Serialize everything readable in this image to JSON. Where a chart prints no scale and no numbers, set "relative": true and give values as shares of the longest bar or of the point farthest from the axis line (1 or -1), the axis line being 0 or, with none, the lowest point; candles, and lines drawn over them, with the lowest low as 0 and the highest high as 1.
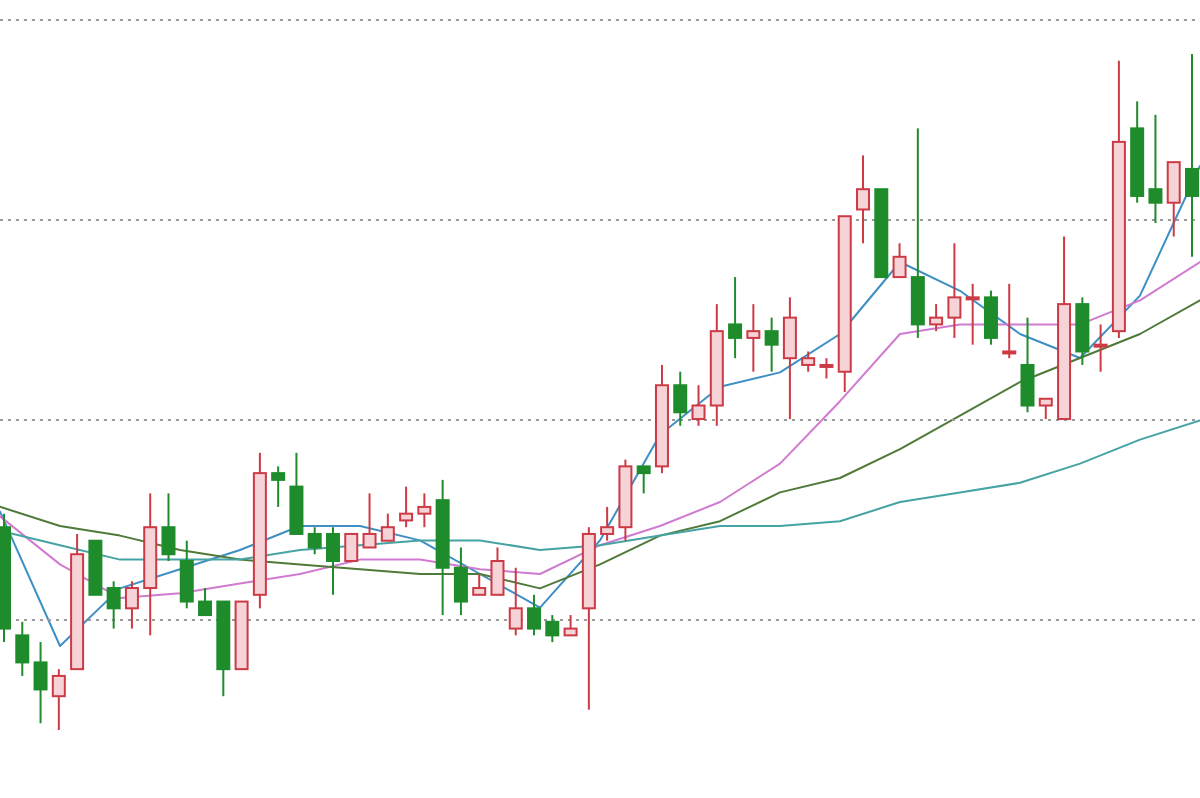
{
  "chart_data": [
    {
      "type": "candlestick",
      "relative": true,
      "grid": "y",
      "categories": [
        null,
        null,
        null,
        null,
        null,
        null,
        null,
        null,
        null,
        null,
        null,
        null,
        null,
        null,
        null,
        null,
        null,
        null,
        null,
        null,
        null,
        null,
        null,
        null,
        null,
        null,
        null,
        null,
        null,
        null,
        null,
        null,
        null,
        null,
        null,
        null,
        null,
        null,
        null,
        null,
        null,
        null,
        null,
        null,
        null,
        null,
        null,
        null,
        null,
        null,
        null,
        null,
        null,
        null,
        null,
        null,
        null,
        null,
        null,
        null,
        null,
        null,
        null,
        null,
        null,
        null
      ],
      "ohlc": [
        [
          0.3,
          0.32,
          0.13,
          0.15
        ],
        [
          0.14,
          0.16,
          0.08,
          0.1
        ],
        [
          0.1,
          0.13,
          0.01,
          0.06
        ],
        [
          0.05,
          0.09,
          0,
          0.08
        ],
        [
          0.09,
          0.29,
          0.09,
          0.26
        ],
        [
          0.28,
          0.28,
          0.2,
          0.2
        ],
        [
          0.21,
          0.22,
          0.15,
          0.18
        ],
        [
          0.18,
          0.22,
          0.15,
          0.21
        ],
        [
          0.21,
          0.35,
          0.14,
          0.3
        ],
        [
          0.3,
          0.35,
          0.25,
          0.26
        ],
        [
          0.25,
          0.28,
          0.18,
          0.19
        ],
        [
          0.19,
          0.21,
          0.17,
          0.17
        ],
        [
          0.19,
          0.19,
          0.05,
          0.09
        ],
        [
          0.09,
          0.19,
          0.09,
          0.19
        ],
        [
          0.2,
          0.41,
          0.18,
          0.38
        ],
        [
          0.38,
          0.39,
          0.33,
          0.37
        ],
        [
          0.36,
          0.41,
          0.29,
          0.29
        ],
        [
          0.29,
          0.3,
          0.26,
          0.27
        ],
        [
          0.29,
          0.3,
          0.2,
          0.25
        ],
        [
          0.25,
          0.29,
          0.25,
          0.29
        ],
        [
          0.27,
          0.35,
          0.27,
          0.29
        ],
        [
          0.28,
          0.32,
          0.28,
          0.3
        ],
        [
          0.31,
          0.36,
          0.3,
          0.32
        ],
        [
          0.32,
          0.35,
          0.3,
          0.33
        ],
        [
          0.34,
          0.37,
          0.17,
          0.24
        ],
        [
          0.24,
          0.27,
          0.17,
          0.19
        ],
        [
          0.2,
          0.23,
          0.2,
          0.21
        ],
        [
          0.2,
          0.27,
          0.2,
          0.25
        ],
        [
          0.15,
          0.24,
          0.14,
          0.18
        ],
        [
          0.18,
          0.2,
          0.14,
          0.15
        ],
        [
          0.16,
          0.17,
          0.13,
          0.14
        ],
        [
          0.14,
          0.17,
          0.14,
          0.15
        ],
        [
          0.18,
          0.3,
          0.03,
          0.29
        ],
        [
          0.29,
          0.33,
          0.28,
          0.3
        ],
        [
          0.3,
          0.4,
          0.28,
          0.39
        ],
        [
          0.39,
          0.39,
          0.35,
          0.38
        ],
        [
          0.39,
          0.54,
          0.38,
          0.51
        ],
        [
          0.51,
          0.53,
          0.45,
          0.47
        ],
        [
          0.46,
          0.51,
          0.45,
          0.48
        ],
        [
          0.48,
          0.63,
          0.45,
          0.59
        ],
        [
          0.6,
          0.67,
          0.55,
          0.58
        ],
        [
          0.58,
          0.63,
          0.53,
          0.59
        ],
        [
          0.59,
          0.61,
          0.53,
          0.57
        ],
        [
          0.55,
          0.64,
          0.46,
          0.61
        ],
        [
          0.54,
          0.56,
          0.53,
          0.55
        ],
        [
          0.54,
          0.55,
          0.52,
          0.54
        ],
        [
          0.53,
          0.76,
          0.5,
          0.76
        ],
        [
          0.77,
          0.85,
          0.72,
          0.8
        ],
        [
          0.8,
          0.8,
          0.67,
          0.67
        ],
        [
          0.67,
          0.72,
          0.67,
          0.7
        ],
        [
          0.67,
          0.89,
          0.58,
          0.6
        ],
        [
          0.6,
          0.63,
          0.59,
          0.61
        ],
        [
          0.61,
          0.72,
          0.58,
          0.64
        ],
        [
          0.64,
          0.66,
          0.57,
          0.64
        ],
        [
          0.64,
          0.65,
          0.57,
          0.58
        ],
        [
          0.56,
          0.66,
          0.55,
          0.56
        ],
        [
          0.54,
          0.61,
          0.47,
          0.48
        ],
        [
          0.48,
          0.49,
          0.46,
          0.49
        ],
        [
          0.46,
          0.73,
          0.46,
          0.63
        ],
        [
          0.63,
          0.64,
          0.54,
          0.56
        ],
        [
          0.57,
          0.6,
          0.53,
          0.57
        ],
        [
          0.59,
          0.99,
          0.58,
          0.87
        ],
        [
          0.89,
          0.93,
          0.78,
          0.79
        ],
        [
          0.8,
          0.91,
          0.75,
          0.78
        ],
        [
          0.78,
          0.84,
          0.73,
          0.84
        ],
        [
          0.83,
          1.0,
          0.7,
          0.79
        ]
      ]
    },
    {
      "type": "line",
      "relative": true,
      "categories": [
        null,
        null,
        null,
        null,
        null,
        null,
        null,
        null,
        null,
        null,
        null,
        null,
        null,
        null,
        null,
        null,
        null,
        null,
        null,
        null,
        null
      ],
      "series": [
        {
          "color": "#3d8fc4",
          "values": [
            0.28,
            0,
            0.12,
            0.16,
            0.2,
            0.25,
            0.25,
            0.22,
            0.15,
            0.08,
            0.22,
            0.44,
            0.54,
            0.57,
            0.65,
            0.8,
            0.74,
            0.65,
            0.6,
            0.73,
            1
          ]
        },
        {
          "color": "#d07ad0",
          "values": [
            0.27,
            0.17,
            0.1,
            0.11,
            0.13,
            0.15,
            0.18,
            0.18,
            0.16,
            0.15,
            0.21,
            0.25,
            0.3,
            0.38,
            0.51,
            0.65,
            0.67,
            0.67,
            0.67,
            0.72,
            0.8
          ]
        },
        {
          "color": "#4f7a3a",
          "values": [
            0.29,
            0.25,
            0.23,
            0.2,
            0.18,
            0.17,
            0.16,
            0.15,
            0.15,
            0.12,
            0.17,
            0.23,
            0.26,
            0.32,
            0.35,
            0.41,
            0.48,
            0.55,
            0.6,
            0.65,
            0.72
          ]
        },
        {
          "color": "#46a3a3",
          "values": [
            0.24,
            0.21,
            0.18,
            0.18,
            0.18,
            0.2,
            0.21,
            0.22,
            0.22,
            0.2,
            0.21,
            0.23,
            0.25,
            0.25,
            0.26,
            0.3,
            0.32,
            0.34,
            0.38,
            0.43,
            0.47
          ]
        }
      ]
    }
  ]
}
